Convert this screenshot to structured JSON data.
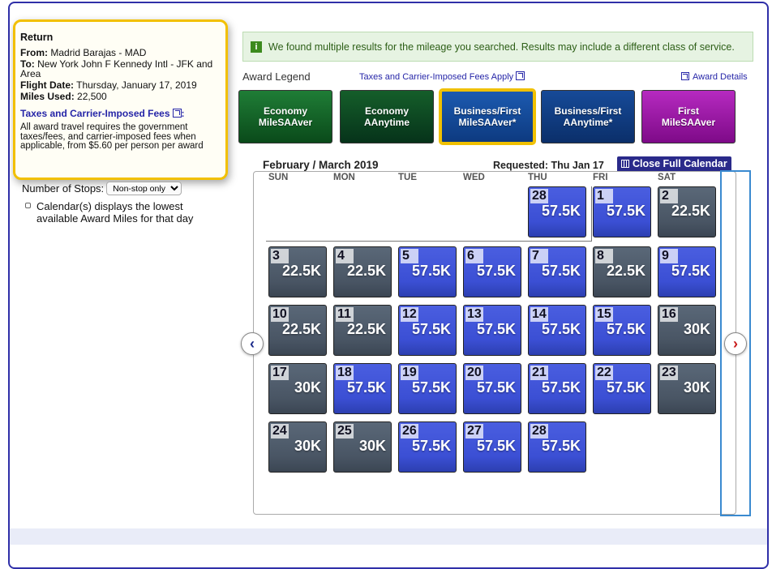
{
  "return_box": {
    "title": "Return",
    "from_label": "From:",
    "from_value": "Madrid Barajas - MAD",
    "to_label": "To:",
    "to_value": "New York John F Kennedy Intl - JFK and Area",
    "flight_date_label": "Flight Date:",
    "flight_date_value": "Thursday, January 17, 2019",
    "miles_used_label": "Miles Used:",
    "miles_used_value": "22,500",
    "tax_link": "Taxes and Carrier-Imposed Fees",
    "tax_colon": ":",
    "note": "All award travel requires the government taxes/fees, and carrier-imposed fees when applicable, from $5.60 per person per award"
  },
  "stops": {
    "label": "Number of Stops:",
    "selected": "Non-stop only"
  },
  "calendar_note": "Calendar(s) displays the lowest available Award Miles for that day",
  "banner": {
    "icon": "i",
    "text": "We found multiple results for the mileage you searched. Results may include a different class of service."
  },
  "legend": {
    "title": "Award Legend",
    "tax_link": "Taxes and Carrier-Imposed Fees Apply",
    "details_link": "Award Details",
    "buttons": [
      {
        "line1": "Economy",
        "line2": "MileSAAver"
      },
      {
        "line1": "Economy",
        "line2": "AAnytime"
      },
      {
        "line1": "Business/First",
        "line2": "MileSAAver*"
      },
      {
        "line1": "Business/First",
        "line2": "AAnytime*"
      },
      {
        "line1": "First",
        "line2": "MileSAAver"
      }
    ]
  },
  "calendar": {
    "month": "February / March 2019",
    "requested": "Requested: Thu Jan 17",
    "close_label": "Close Full Calendar",
    "weekdays": [
      "SUN",
      "MON",
      "TUE",
      "WED",
      "THU",
      "FRI",
      "SAT"
    ],
    "days": [
      {
        "day": "28",
        "miles": "57.5K",
        "color": "blue"
      },
      {
        "day": "1",
        "miles": "57.5K",
        "color": "blue"
      },
      {
        "day": "2",
        "miles": "22.5K",
        "color": "gray"
      },
      {
        "day": "3",
        "miles": "22.5K",
        "color": "gray"
      },
      {
        "day": "4",
        "miles": "22.5K",
        "color": "gray"
      },
      {
        "day": "5",
        "miles": "57.5K",
        "color": "blue"
      },
      {
        "day": "6",
        "miles": "57.5K",
        "color": "blue"
      },
      {
        "day": "7",
        "miles": "57.5K",
        "color": "blue"
      },
      {
        "day": "8",
        "miles": "22.5K",
        "color": "gray"
      },
      {
        "day": "9",
        "miles": "57.5K",
        "color": "blue"
      },
      {
        "day": "10",
        "miles": "22.5K",
        "color": "gray"
      },
      {
        "day": "11",
        "miles": "22.5K",
        "color": "gray"
      },
      {
        "day": "12",
        "miles": "57.5K",
        "color": "blue"
      },
      {
        "day": "13",
        "miles": "57.5K",
        "color": "blue"
      },
      {
        "day": "14",
        "miles": "57.5K",
        "color": "blue"
      },
      {
        "day": "15",
        "miles": "57.5K",
        "color": "blue"
      },
      {
        "day": "16",
        "miles": "30K",
        "color": "gray"
      },
      {
        "day": "17",
        "miles": "30K",
        "color": "gray"
      },
      {
        "day": "18",
        "miles": "57.5K",
        "color": "blue"
      },
      {
        "day": "19",
        "miles": "57.5K",
        "color": "blue"
      },
      {
        "day": "20",
        "miles": "57.5K",
        "color": "blue"
      },
      {
        "day": "21",
        "miles": "57.5K",
        "color": "blue"
      },
      {
        "day": "22",
        "miles": "57.5K",
        "color": "blue"
      },
      {
        "day": "23",
        "miles": "30K",
        "color": "gray"
      },
      {
        "day": "24",
        "miles": "30K",
        "color": "gray"
      },
      {
        "day": "25",
        "miles": "30K",
        "color": "gray"
      },
      {
        "day": "26",
        "miles": "57.5K",
        "color": "blue"
      },
      {
        "day": "27",
        "miles": "57.5K",
        "color": "blue"
      },
      {
        "day": "28",
        "miles": "57.5K",
        "color": "blue"
      }
    ],
    "prev_icon": "‹",
    "next_icon": "›"
  }
}
